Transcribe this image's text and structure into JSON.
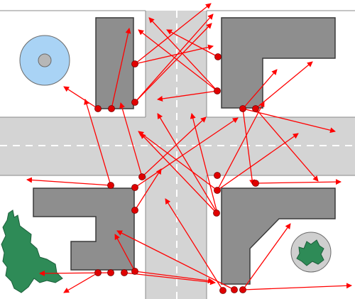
{
  "colors": {
    "background": "#ffffff",
    "road": "#d4d4d4",
    "road_edge": "#7a7a7a",
    "lane_marking": "#ffffff",
    "building": "#8e8e8e",
    "building_edge": "#3a3a3a",
    "pond": "#a9d3f5",
    "pond_center": "#b7b7b7",
    "tree": "#2e8b57",
    "tree_ring": "#cfcfcf",
    "node": "#e00000",
    "arrow": "#ff0000"
  },
  "network": {
    "description_visible": false,
    "node_count": 23,
    "edge_count": 37
  }
}
